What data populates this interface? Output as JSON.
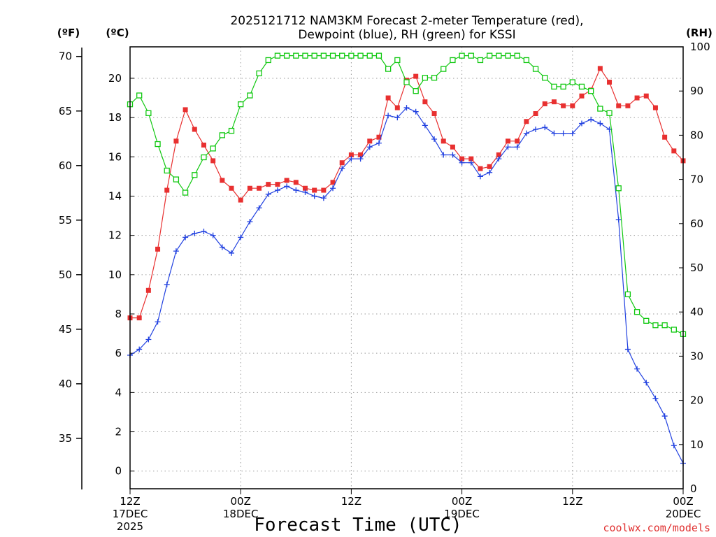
{
  "chart_data": {
    "type": "line",
    "title_line1": "2025121712 NAM3KM Forecast 2-meter Temperature (red),",
    "title_line2": "Dewpoint (blue), RH (green) for KSSI",
    "xlabel": "Forecast Time (UTC)",
    "credit": "coolwx.com/models",
    "units": {
      "fahrenheit": "(ºF)",
      "celsius": "(ºC)",
      "rh": "(RH)"
    },
    "x_range_hours": [
      0,
      60
    ],
    "celsius_range": [
      -0.9,
      21.6
    ],
    "rh_range": [
      0,
      100
    ],
    "celsius_ticks": [
      0,
      2,
      4,
      6,
      8,
      10,
      12,
      14,
      16,
      18,
      20
    ],
    "fahrenheit_ticks": [
      35,
      40,
      45,
      50,
      55,
      60,
      65,
      70
    ],
    "rh_ticks": [
      0,
      10,
      20,
      30,
      40,
      50,
      60,
      70,
      80,
      90,
      100
    ],
    "x_ticks": [
      {
        "hour": 0,
        "line1": "12Z",
        "line2": "17DEC",
        "line3": "2025"
      },
      {
        "hour": 12,
        "line1": "00Z",
        "line2": "18DEC",
        "line3": ""
      },
      {
        "hour": 24,
        "line1": "12Z",
        "line2": "",
        "line3": ""
      },
      {
        "hour": 36,
        "line1": "00Z",
        "line2": "19DEC",
        "line3": ""
      },
      {
        "hour": 48,
        "line1": "12Z",
        "line2": "",
        "line3": ""
      },
      {
        "hour": 60,
        "line1": "00Z",
        "line2": "20DEC",
        "line3": ""
      }
    ],
    "series": [
      {
        "name": "Temperature",
        "unit": "C",
        "color": "#e83030",
        "marker": "filled-square",
        "hours": [
          0,
          1,
          2,
          3,
          4,
          5,
          6,
          7,
          8,
          9,
          10,
          11,
          12,
          13,
          14,
          15,
          16,
          17,
          18,
          19,
          20,
          21,
          22,
          23,
          24,
          25,
          26,
          27,
          28,
          29,
          30,
          31,
          32,
          33,
          34,
          35,
          36,
          37,
          38,
          39,
          40,
          41,
          42,
          43,
          44,
          45,
          46,
          47,
          48,
          49,
          50,
          51,
          52,
          53,
          54,
          55,
          56,
          57,
          58,
          59,
          60
        ],
        "values": [
          7.8,
          7.8,
          9.2,
          11.3,
          14.3,
          16.8,
          18.4,
          17.4,
          16.6,
          15.8,
          14.8,
          14.4,
          13.8,
          14.4,
          14.4,
          14.6,
          14.6,
          14.8,
          14.7,
          14.4,
          14.3,
          14.3,
          14.7,
          15.7,
          16.1,
          16.1,
          16.8,
          17.0,
          19.0,
          18.5,
          19.9,
          20.1,
          18.8,
          18.2,
          16.8,
          16.5,
          15.9,
          15.9,
          15.4,
          15.5,
          16.1,
          16.8,
          16.8,
          17.8,
          18.2,
          18.7,
          18.8,
          18.6,
          18.6,
          19.1,
          19.4,
          20.5,
          19.8,
          18.6,
          18.6,
          19.0,
          19.1,
          18.5,
          17.0,
          16.3,
          15.8
        ]
      },
      {
        "name": "Dewpoint",
        "unit": "C",
        "color": "#2040e0",
        "marker": "plus",
        "hours": [
          0,
          1,
          2,
          3,
          4,
          5,
          6,
          7,
          8,
          9,
          10,
          11,
          12,
          13,
          14,
          15,
          16,
          17,
          18,
          19,
          20,
          21,
          22,
          23,
          24,
          25,
          26,
          27,
          28,
          29,
          30,
          31,
          32,
          33,
          34,
          35,
          36,
          37,
          38,
          39,
          40,
          41,
          42,
          43,
          44,
          45,
          46,
          47,
          48,
          49,
          50,
          51,
          52,
          53,
          54,
          55,
          56,
          57,
          58,
          59,
          60
        ],
        "values": [
          5.9,
          6.2,
          6.7,
          7.6,
          9.5,
          11.2,
          11.9,
          12.1,
          12.2,
          12.0,
          11.4,
          11.1,
          11.9,
          12.7,
          13.4,
          14.1,
          14.3,
          14.5,
          14.3,
          14.2,
          14.0,
          13.9,
          14.4,
          15.4,
          15.9,
          15.9,
          16.5,
          16.7,
          18.1,
          18.0,
          18.5,
          18.3,
          17.6,
          16.9,
          16.1,
          16.1,
          15.7,
          15.7,
          15.0,
          15.2,
          15.9,
          16.5,
          16.5,
          17.2,
          17.4,
          17.5,
          17.2,
          17.2,
          17.2,
          17.7,
          17.9,
          17.7,
          17.4,
          12.8,
          6.2,
          5.2,
          4.5,
          3.7,
          2.8,
          1.3,
          0.4
        ]
      },
      {
        "name": "RH",
        "unit": "%",
        "color": "#10c810",
        "marker": "open-square",
        "hours": [
          0,
          1,
          2,
          3,
          4,
          5,
          6,
          7,
          8,
          9,
          10,
          11,
          12,
          13,
          14,
          15,
          16,
          17,
          18,
          19,
          20,
          21,
          22,
          23,
          24,
          25,
          26,
          27,
          28,
          29,
          30,
          31,
          32,
          33,
          34,
          35,
          36,
          37,
          38,
          39,
          40,
          41,
          42,
          43,
          44,
          45,
          46,
          47,
          48,
          49,
          50,
          51,
          52,
          53,
          54,
          55,
          56,
          57,
          58,
          59,
          60
        ],
        "values": [
          87,
          89,
          85,
          78,
          72,
          70,
          67,
          71,
          75,
          77,
          80,
          81,
          87,
          89,
          94,
          97,
          98,
          98,
          98,
          98,
          98,
          98,
          98,
          98,
          98,
          98,
          98,
          98,
          95,
          97,
          92,
          90,
          93,
          93,
          95,
          97,
          98,
          98,
          97,
          98,
          98,
          98,
          98,
          97,
          95,
          93,
          91,
          91,
          92,
          91,
          90,
          86,
          85,
          68,
          44,
          40,
          38,
          37,
          37,
          36,
          35
        ]
      }
    ]
  }
}
